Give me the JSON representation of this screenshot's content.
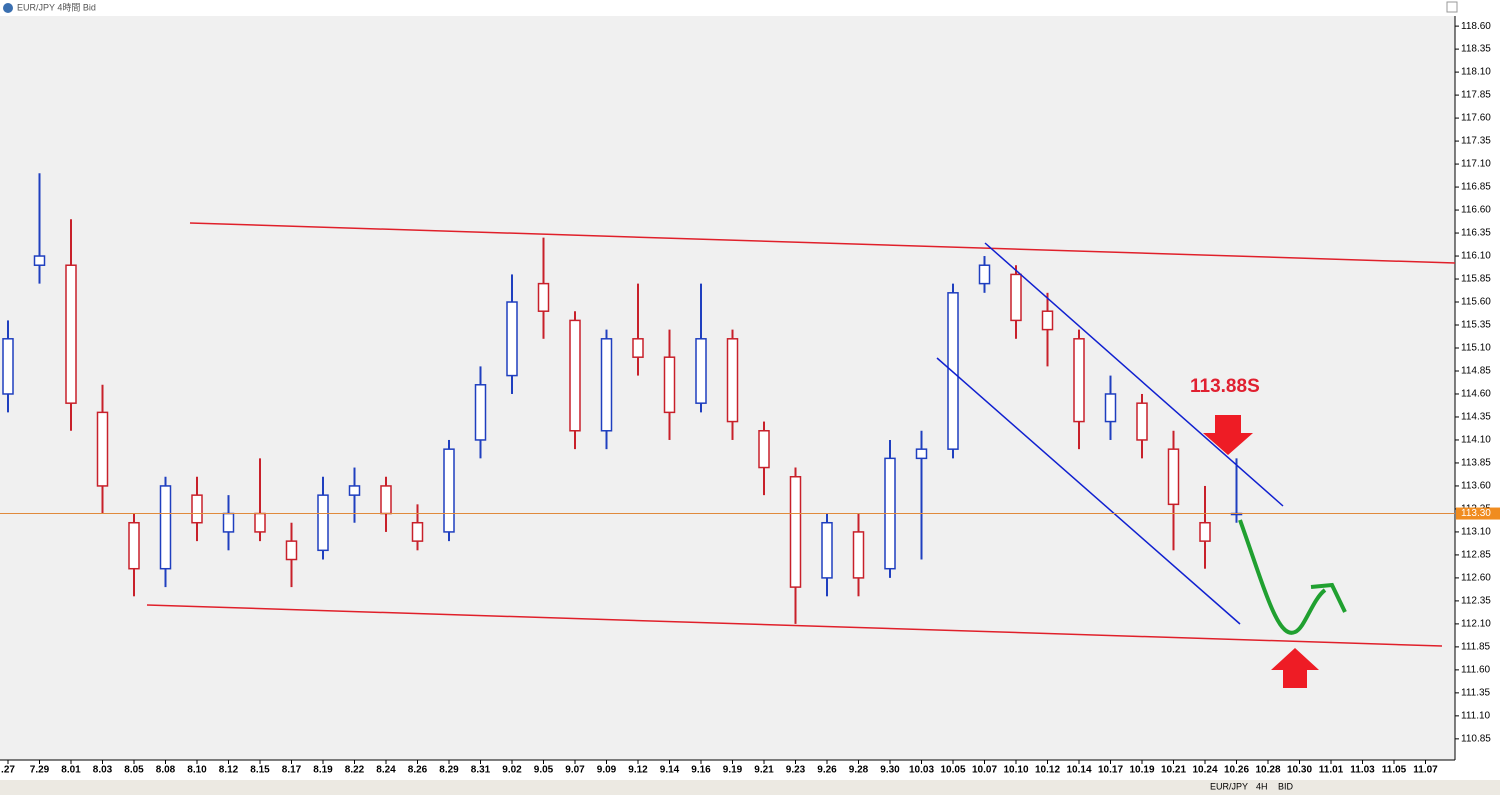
{
  "window_title": "EUR/JPY 4時間 Bid",
  "toolbar": {
    "symbol": "EUR/JPY",
    "timeframe": "4H",
    "side": "BID"
  },
  "chart_data": {
    "type": "candlestick",
    "annotation": "113.88S",
    "up_color": "#1f3fbf",
    "down_color": "#c8202a",
    "categories": [
      ".27",
      "7.29",
      "8.01",
      "8.03",
      "8.05",
      "8.08",
      "8.10",
      "8.12",
      "8.15",
      "8.17",
      "8.19",
      "8.22",
      "8.24",
      "8.26",
      "8.29",
      "8.31",
      "9.02",
      "9.05",
      "9.07",
      "9.09",
      "9.12",
      "9.14",
      "9.16",
      "9.19",
      "9.21",
      "9.23",
      "9.26",
      "9.28",
      "9.30",
      "10.03",
      "10.05",
      "10.07",
      "10.10",
      "10.12",
      "10.14",
      "10.17",
      "10.19",
      "10.21",
      "10.24",
      "10.26",
      "10.28",
      "10.30",
      "11.01",
      "11.03",
      "11.05",
      "11.07"
    ],
    "open": [
      114.6,
      116.0,
      116.0,
      114.4,
      113.2,
      112.7,
      113.5,
      113.1,
      113.3,
      113.0,
      112.9,
      113.5,
      113.6,
      113.2,
      113.1,
      114.1,
      114.8,
      115.8,
      115.4,
      114.2,
      115.2,
      115.0,
      114.5,
      115.2,
      114.2,
      113.7,
      112.6,
      113.1,
      112.7,
      113.9,
      114.0,
      115.8,
      115.9,
      115.5,
      115.2,
      114.3,
      114.5,
      114.0,
      113.2,
      113.3,
      null,
      null,
      null,
      null,
      null,
      null
    ],
    "high": [
      115.4,
      117.0,
      116.5,
      114.7,
      113.3,
      113.7,
      113.7,
      113.5,
      113.9,
      113.2,
      113.7,
      113.8,
      113.7,
      113.4,
      114.1,
      114.9,
      115.9,
      116.3,
      115.5,
      115.3,
      115.8,
      115.3,
      115.8,
      115.3,
      114.3,
      113.8,
      113.3,
      113.3,
      114.1,
      114.2,
      115.8,
      116.1,
      116.0,
      115.7,
      115.3,
      114.8,
      114.6,
      114.2,
      113.6,
      113.9,
      null,
      null,
      null,
      null,
      null,
      null
    ],
    "low": [
      114.4,
      115.8,
      114.2,
      113.3,
      112.4,
      112.5,
      113.0,
      112.9,
      113.0,
      112.5,
      112.8,
      113.2,
      113.1,
      112.9,
      113.0,
      113.9,
      114.6,
      115.2,
      114.0,
      114.0,
      114.8,
      114.1,
      114.4,
      114.1,
      113.5,
      112.1,
      112.4,
      112.4,
      112.6,
      112.8,
      113.9,
      115.7,
      115.2,
      114.9,
      114.0,
      114.1,
      113.9,
      112.9,
      112.7,
      113.2,
      null,
      null,
      null,
      null,
      null,
      null
    ],
    "close": [
      115.2,
      116.1,
      114.5,
      113.6,
      112.7,
      113.6,
      113.2,
      113.3,
      113.1,
      112.8,
      113.5,
      113.6,
      113.3,
      113.0,
      114.0,
      114.7,
      115.6,
      115.5,
      114.2,
      115.2,
      115.0,
      114.4,
      115.2,
      114.3,
      113.8,
      112.5,
      113.2,
      112.6,
      113.9,
      114.0,
      115.7,
      116.0,
      115.4,
      115.3,
      114.3,
      114.6,
      114.1,
      113.4,
      113.0,
      113.3,
      null,
      null,
      null,
      null,
      null,
      null
    ],
    "ylim": [
      110.62,
      118.71
    ],
    "yticks": [
      110.85,
      {
        "value": 111.1,
        "label": "111.10"
      },
      111.35,
      {
        "value": 111.6,
        "label": "111.60"
      },
      111.85,
      {
        "value": 112.1,
        "label": "112.10"
      },
      112.35,
      {
        "value": 112.6,
        "label": "112.60"
      },
      112.85,
      {
        "value": 113.1,
        "label": "113.10"
      },
      113.35,
      {
        "value": 113.6,
        "label": "113.60"
      },
      113.85,
      {
        "value": 114.1,
        "label": "114.10"
      },
      114.35,
      {
        "value": 114.6,
        "label": "114.60"
      },
      114.85,
      {
        "value": 115.1,
        "label": "115.10"
      },
      115.35,
      {
        "value": 115.6,
        "label": "115.60"
      },
      115.85,
      {
        "value": 116.1,
        "label": "116.10"
      },
      116.35,
      {
        "value": 116.6,
        "label": "116.60"
      },
      116.85,
      {
        "value": 117.1,
        "label": "117.10"
      },
      117.35,
      {
        "value": 117.6,
        "label": "117.60"
      },
      117.85,
      {
        "value": 118.1,
        "label": "118.10"
      },
      118.35,
      {
        "value": 118.6,
        "label": "118.60"
      }
    ],
    "current_price": {
      "value": 113.3,
      "label": "113.30"
    }
  }
}
